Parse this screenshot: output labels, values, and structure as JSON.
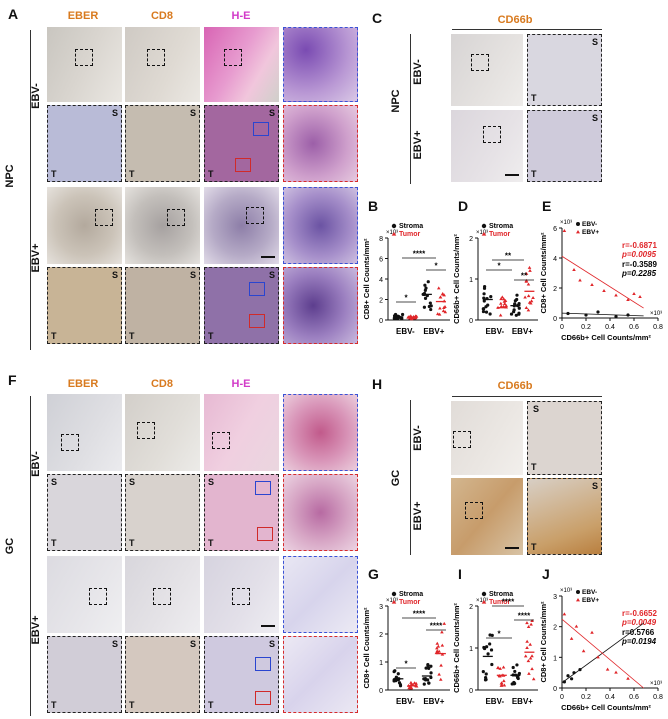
{
  "panels": {
    "A": "A",
    "B": "B",
    "C": "C",
    "D": "D",
    "E": "E",
    "F": "F",
    "G": "G",
    "H": "H",
    "I": "I",
    "J": "J"
  },
  "colors": {
    "eber": "#d87a1f",
    "cd8": "#d87a1f",
    "he": "#d23cc8",
    "cd66b": "#d87a1f",
    "tumor": "#e0262a",
    "stroma": "#111111"
  },
  "headers": {
    "eber": "EBER",
    "cd8": "CD8",
    "he": "H-E",
    "cd66b": "CD66b"
  },
  "groups": {
    "npc": "NPC",
    "gc": "GC",
    "ebv_neg": "EBV-",
    "ebv_pos": "EBV+"
  },
  "tiles": {
    "s": "S",
    "t": "T"
  },
  "legends": {
    "stroma": "Stroma",
    "tumor": "Tumor",
    "ebv_neg": "EBV-",
    "ebv_pos": "EBV+"
  },
  "axes": {
    "cd8": "CD8+ Cell Counts/mm²",
    "cd66b": "CD66b+ Cell Counts/mm²",
    "exp3": "×10³"
  },
  "stats": {
    "E": {
      "r_pos": "r=-0.6871",
      "p_pos": "p=0.0095",
      "r_neg": "r=-0.3589",
      "p_neg": "p=0.2285"
    },
    "J": {
      "r_pos": "r=-0.6652",
      "p_pos": "p=0.0049",
      "r_neg": "r=0.5766",
      "p_neg": "p=0.0194"
    }
  },
  "sig": {
    "one": "*",
    "two": "**",
    "four": "****"
  },
  "ticks": {
    "B_y": [
      "0",
      "2",
      "4",
      "6",
      "8"
    ],
    "D_y": [
      "0",
      "1",
      "2"
    ],
    "E_y": [
      "0",
      "2",
      "4",
      "6"
    ],
    "E_x": [
      "0",
      "0.2",
      "0.4",
      "0.6",
      "0.8"
    ],
    "G_y": [
      "0",
      "1",
      "2",
      "3"
    ],
    "I_y": [
      "0",
      "1",
      "2"
    ],
    "J_y": [
      "0",
      "1",
      "2",
      "3"
    ],
    "J_x": [
      "0",
      "0.2",
      "0.4",
      "0.6",
      "0.8"
    ]
  },
  "chart_data": [
    {
      "id": "B",
      "type": "scatter",
      "categories": [
        "EBV-",
        "EBV+"
      ],
      "series": [
        {
          "name": "Stroma",
          "values": [
            0.3,
            2.5
          ]
        },
        {
          "name": "Tumor",
          "values": [
            0.2,
            1.8
          ]
        }
      ],
      "ylabel": "CD8+ Cell Counts/mm²",
      "ylim": [
        0,
        8
      ]
    },
    {
      "id": "D",
      "type": "scatter",
      "categories": [
        "EBV-",
        "EBV+"
      ],
      "series": [
        {
          "name": "Stroma",
          "values": [
            0.5,
            0.35
          ]
        },
        {
          "name": "Tumor",
          "values": [
            0.3,
            0.7
          ]
        }
      ],
      "ylabel": "CD66b+ Cell Counts/mm²",
      "ylim": [
        0,
        2
      ]
    },
    {
      "id": "E",
      "type": "scatter",
      "series": [
        {
          "name": "EBV-",
          "x": [
            0.05,
            0.2,
            0.3,
            0.45,
            0.55
          ],
          "y": [
            0.3,
            0.2,
            0.4,
            0.1,
            0.2
          ]
        },
        {
          "name": "EBV+",
          "x": [
            0.02,
            0.1,
            0.15,
            0.25,
            0.35,
            0.45,
            0.55,
            0.6,
            0.65
          ],
          "y": [
            5.8,
            3.2,
            2.5,
            2.2,
            1.8,
            1.5,
            1.2,
            1.6,
            1.4
          ]
        }
      ],
      "xlabel": "CD66b+ Cell Counts/mm²",
      "ylabel": "CD8+ Cell Counts/mm²",
      "xlim": [
        0,
        0.8
      ],
      "ylim": [
        0,
        6
      ]
    },
    {
      "id": "G",
      "type": "scatter",
      "categories": [
        "EBV-",
        "EBV+"
      ],
      "series": [
        {
          "name": "Stroma",
          "values": [
            0.4,
            0.5
          ]
        },
        {
          "name": "Tumor",
          "values": [
            0.15,
            1.3
          ]
        }
      ],
      "ylabel": "CD8+ Cell Counts/mm²",
      "ylim": [
        0,
        3
      ]
    },
    {
      "id": "I",
      "type": "scatter",
      "categories": [
        "EBV-",
        "EBV+"
      ],
      "series": [
        {
          "name": "Stroma",
          "values": [
            0.8,
            0.35
          ]
        },
        {
          "name": "Tumor",
          "values": [
            0.35,
            0.9
          ]
        }
      ],
      "ylabel": "CD66b+ Cell Counts/mm²",
      "ylim": [
        0,
        2
      ]
    },
    {
      "id": "J",
      "type": "scatter",
      "series": [
        {
          "name": "EBV-",
          "x": [
            0.02,
            0.05,
            0.08,
            0.1,
            0.15
          ],
          "y": [
            0.2,
            0.4,
            0.3,
            0.5,
            0.6
          ]
        },
        {
          "name": "EBV+",
          "x": [
            0.02,
            0.08,
            0.12,
            0.18,
            0.25,
            0.3,
            0.38,
            0.45,
            0.55
          ],
          "y": [
            2.4,
            1.6,
            2.0,
            1.2,
            1.8,
            1.0,
            0.6,
            0.5,
            0.3
          ]
        }
      ],
      "xlabel": "CD66b+ Cell Counts/mm²",
      "ylabel": "CD8+ Cell Counts/mm²",
      "xlim": [
        0,
        0.8
      ],
      "ylim": [
        0,
        3
      ]
    }
  ]
}
